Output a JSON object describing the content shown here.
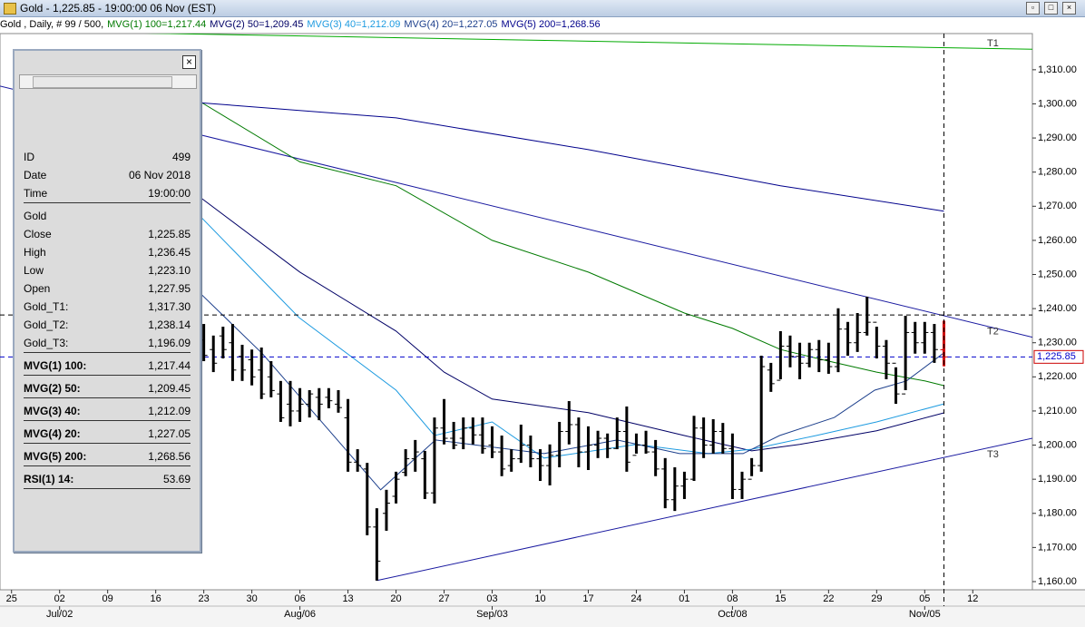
{
  "window": {
    "title": "Gold - 1,225.85 - 19:00:00  06 Nov (EST)"
  },
  "legend_prefix": "Gold , Daily, # 99 / 500,",
  "data_window": {
    "rows": [
      [
        "ID",
        "499"
      ],
      [
        "Date",
        "06 Nov 2018"
      ],
      [
        "Time",
        "19:00:00"
      ],
      [
        "Gold"
      ],
      [
        "Close",
        "1,225.85"
      ],
      [
        "High",
        "1,236.45"
      ],
      [
        "Low",
        "1,223.10"
      ],
      [
        "Open",
        "1,227.95"
      ],
      [
        "Gold_T1:",
        "1,317.30"
      ],
      [
        "Gold_T2:",
        "1,238.14"
      ],
      [
        "Gold_T3:",
        "1,196.09"
      ],
      [
        "MVG(1) 100:",
        "1,217.44"
      ],
      [
        "MVG(2) 50:",
        "1,209.45"
      ],
      [
        "MVG(3) 40:",
        "1,212.09"
      ],
      [
        "MVG(4) 20:",
        "1,227.05"
      ],
      [
        "MVG(5) 200:",
        "1,268.56"
      ],
      [
        "RSI(1) 14:",
        "53.69"
      ]
    ]
  },
  "chart_data": {
    "type": "ohlc",
    "xlim": [
      -21.2,
      86.2
    ],
    "ylim": [
      1157.6,
      1320.6
    ],
    "xticks": [
      {
        "value": -20,
        "label": "25"
      },
      {
        "value": -15,
        "label": "02"
      },
      {
        "value": -10,
        "label": "09"
      },
      {
        "value": -5,
        "label": "16"
      },
      {
        "value": 0,
        "label": "23"
      },
      {
        "value": 5,
        "label": "30"
      },
      {
        "value": 10,
        "label": "06"
      },
      {
        "value": 15,
        "label": "13"
      },
      {
        "value": 20,
        "label": "20"
      },
      {
        "value": 25,
        "label": "27"
      },
      {
        "value": 30,
        "label": "03"
      },
      {
        "value": 35,
        "label": "10"
      },
      {
        "value": 40,
        "label": "17"
      },
      {
        "value": 45,
        "label": "24"
      },
      {
        "value": 50,
        "label": "01"
      },
      {
        "value": 55,
        "label": "08"
      },
      {
        "value": 60,
        "label": "15"
      },
      {
        "value": 65,
        "label": "22"
      },
      {
        "value": 70,
        "label": "29"
      },
      {
        "value": 75,
        "label": "05"
      },
      {
        "value": 80,
        "label": "12"
      }
    ],
    "xticks_month": [
      {
        "value": -15,
        "label": "Jul/02"
      },
      {
        "value": 10,
        "label": "Aug/06"
      },
      {
        "value": 30,
        "label": "Sep/03"
      },
      {
        "value": 55,
        "label": "Oct/08"
      },
      {
        "value": 75,
        "label": "Nov/05"
      }
    ],
    "yticks": [
      {
        "value": 1160,
        "label": "1,160.00"
      },
      {
        "value": 1170,
        "label": "1,170.00"
      },
      {
        "value": 1180,
        "label": "1,180.00"
      },
      {
        "value": 1190,
        "label": "1,190.00"
      },
      {
        "value": 1200,
        "label": "1,200.00"
      },
      {
        "value": 1210,
        "label": "1,210.00"
      },
      {
        "value": 1220,
        "label": "1,220.00"
      },
      {
        "value": 1230,
        "label": "1,230.00"
      },
      {
        "value": 1240,
        "label": "1,240.00"
      },
      {
        "value": 1250,
        "label": "1,250.00"
      },
      {
        "value": 1260,
        "label": "1,260.00"
      },
      {
        "value": 1270,
        "label": "1,270.00"
      },
      {
        "value": 1280,
        "label": "1,280.00"
      },
      {
        "value": 1290,
        "label": "1,290.00"
      },
      {
        "value": 1300,
        "label": "1,300.00"
      },
      {
        "value": 1310,
        "label": "1,310.00"
      }
    ],
    "bar_color": "#000000",
    "last_bar_color": "#cc0000",
    "open": [
      1230.8,
      1228,
      1232,
      1230,
      1226,
      1225,
      1222,
      1220,
      1215,
      1212,
      1210,
      1212,
      1214,
      1214,
      1212,
      1208,
      1195,
      1193,
      1176,
      1180,
      1185,
      1192,
      1196,
      1196,
      1186,
      1205,
      1202,
      1202,
      1205,
      1203,
      1200,
      1198,
      1194,
      1196,
      1200,
      1196,
      1194,
      1197,
      1204,
      1206,
      1198,
      1200,
      1202,
      1199,
      1204,
      1197,
      1200,
      1198,
      1193,
      1184,
      1188,
      1190,
      1205,
      1200,
      1204,
      1199,
      1187,
      1190,
      1194,
      1222,
      1219,
      1229,
      1226,
      1224,
      1228,
      1225,
      1223,
      1234,
      1230,
      1233,
      1236,
      1229,
      1224,
      1215,
      1233,
      1230,
      1233,
      1227.95
    ],
    "high": [
      1235.5,
      1232.1,
      1234.7,
      1235.5,
      1229.4,
      1228,
      1228.6,
      1224.6,
      1218.8,
      1218.8,
      1216.7,
      1216.1,
      1216.7,
      1216.7,
      1216.1,
      1213.5,
      1198.8,
      1194.8,
      1181.5,
      1186.9,
      1192.2,
      1198.8,
      1201.5,
      1198.3,
      1208.1,
      1213.5,
      1206.8,
      1208.1,
      1208.1,
      1208.1,
      1205.5,
      1202.8,
      1198.8,
      1206,
      1202.8,
      1198.8,
      1200.2,
      1206.8,
      1212.9,
      1208.1,
      1205.5,
      1204.2,
      1203.4,
      1208.1,
      1211.3,
      1203.4,
      1204.2,
      1201.5,
      1196.2,
      1193.5,
      1192.2,
      1208.6,
      1208.1,
      1207.6,
      1206.5,
      1203.4,
      1192.2,
      1196.2,
      1226.2,
      1224.1,
      1233.4,
      1232.1,
      1230,
      1230,
      1230.8,
      1230,
      1240.1,
      1236.1,
      1238.7,
      1243.5,
      1234.7,
      1230.8,
      1222.8,
      1237.9,
      1236.1,
      1236.1,
      1235.5,
      1236.45
    ],
    "low": [
      1224.6,
      1221.4,
      1225.4,
      1218.8,
      1218.8,
      1217.5,
      1213.5,
      1214,
      1206.8,
      1205.5,
      1206.8,
      1208.1,
      1207.3,
      1210.8,
      1209.5,
      1192.2,
      1192.2,
      1173.6,
      1160.3,
      1174.9,
      1182.9,
      1190.9,
      1192.2,
      1184.2,
      1182.9,
      1200.2,
      1198.8,
      1198.8,
      1200.2,
      1197.5,
      1196.2,
      1190.9,
      1192.2,
      1194.8,
      1193.5,
      1189.5,
      1188.2,
      1193.5,
      1200.2,
      1193.5,
      1192.7,
      1196.2,
      1196.2,
      1198.8,
      1192.2,
      1197.5,
      1197.5,
      1190.9,
      1181.5,
      1180.7,
      1184.2,
      1189.5,
      1196.2,
      1197.5,
      1197.5,
      1184.2,
      1184.2,
      1190.9,
      1192.2,
      1215.6,
      1219.3,
      1222.8,
      1219.3,
      1222.8,
      1221.4,
      1220.9,
      1221.4,
      1226.2,
      1227.3,
      1232.1,
      1225.4,
      1219.3,
      1212.1,
      1216.1,
      1226.8,
      1226.8,
      1224.1,
      1223.1
    ],
    "close": [
      1226.3,
      1224,
      1228,
      1222,
      1222,
      1220,
      1215,
      1216,
      1208,
      1210,
      1212,
      1215,
      1212,
      1213,
      1211,
      1195,
      1194,
      1176,
      1166,
      1183,
      1190,
      1196,
      1198,
      1186,
      1205,
      1202,
      1200,
      1205,
      1203,
      1199,
      1198,
      1193,
      1196,
      1200,
      1196,
      1194,
      1197,
      1204,
      1206,
      1198,
      1200,
      1202,
      1199,
      1204,
      1195,
      1200,
      1198,
      1193,
      1184,
      1188,
      1190,
      1205,
      1200,
      1204,
      1199,
      1187,
      1190,
      1194,
      1223,
      1218,
      1229,
      1226,
      1224,
      1228,
      1225,
      1223,
      1234,
      1230,
      1233,
      1236,
      1229,
      1224,
      1215,
      1233,
      1230,
      1233,
      1228,
      1225.85
    ],
    "series": [
      {
        "name": "MVG(1) 100=1,217.44",
        "color": "#007a00",
        "x": [
          -0.7,
          10,
          20,
          30,
          40,
          50,
          55,
          60,
          65,
          70,
          75,
          77
        ],
        "values": [
          1301.2,
          1283,
          1276,
          1260,
          1250.7,
          1238.7,
          1234.2,
          1228,
          1224.6,
          1221.4,
          1218.8,
          1217.44
        ]
      },
      {
        "name": "MVG(2) 50=1,209.45",
        "color": "#000066",
        "x": [
          -0.7,
          10,
          20,
          25,
          30,
          40,
          50,
          57,
          62,
          70,
          77
        ],
        "values": [
          1273.3,
          1250.7,
          1233.4,
          1221.4,
          1213.5,
          1209.5,
          1202.8,
          1198.3,
          1200.2,
          1204.2,
          1209.45
        ]
      },
      {
        "name": "MVG(3) 40=1,212.09",
        "color": "#1e9be0",
        "x": [
          -0.7,
          9.9,
          20,
          24,
          30,
          35.4,
          45,
          52.5,
          57,
          63.7,
          70,
          77
        ],
        "values": [
          1268,
          1237.4,
          1216.1,
          1202.8,
          1206.8,
          1196.2,
          1200.2,
          1197.5,
          1198.8,
          1202.8,
          1206.8,
          1212.09
        ]
      },
      {
        "name": "MVG(4) 20=1,227.05",
        "color": "#1c3f8c",
        "x": [
          -0.7,
          6.1,
          18.4,
          24.1,
          35.4,
          43,
          49.5,
          56.1,
          59.9,
          65.6,
          69.8,
          73.1,
          77
        ],
        "values": [
          1245.4,
          1226.8,
          1186.9,
          1201.5,
          1197.5,
          1201.5,
          1197.5,
          1197.5,
          1202.8,
          1208.1,
          1216.1,
          1218.8,
          1227.05
        ]
      },
      {
        "name": "MVG(5) 200=1,268.56",
        "color": "#00008b",
        "x": [
          -0.7,
          20,
          40,
          60,
          77
        ],
        "values": [
          1300.4,
          1295.9,
          1286.6,
          1276,
          1268.56
        ]
      }
    ],
    "trendlines": [
      {
        "name": "T1",
        "color": "#00aa00",
        "x": [
          -21.2,
          86.2
        ],
        "values": [
          1321.5,
          1316.0
        ]
      },
      {
        "name": "T2",
        "color": "#1a1aa0",
        "x": [
          -21.2,
          86.2
        ],
        "values": [
          1305.2,
          1231.6
        ]
      },
      {
        "name": "T3",
        "color": "#1a1aa0",
        "x": [
          18,
          86.2
        ],
        "values": [
          1160.3,
          1202.0
        ]
      }
    ],
    "last_price": {
      "value": 1225.85,
      "label": "1,225.85",
      "color": "#0000cc"
    },
    "crosshair": {
      "x": 77,
      "y": 1238.14
    }
  }
}
